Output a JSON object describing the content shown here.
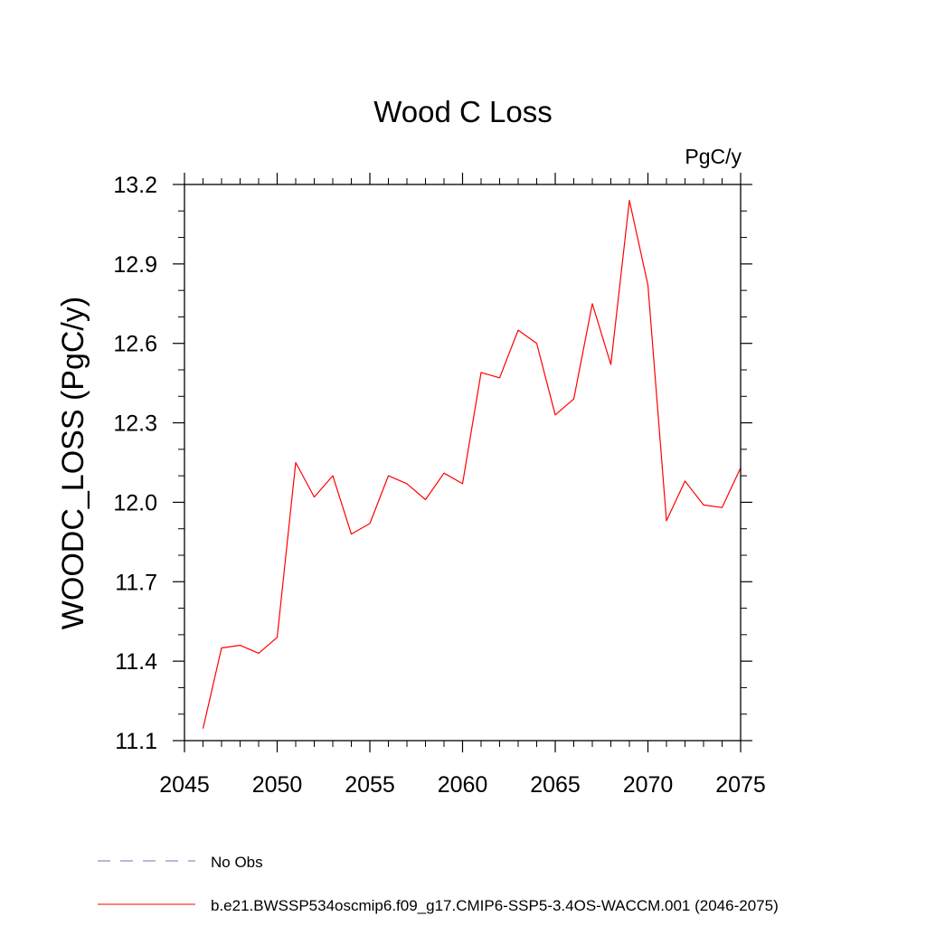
{
  "chart_data": {
    "type": "line",
    "title": "Wood C Loss",
    "units_label": "PgC/y",
    "ylabel": "WOODC_LOSS  (PgC/y)",
    "xlabel": "",
    "xlim": [
      2045,
      2075
    ],
    "ylim": [
      11.1,
      13.2
    ],
    "x_ticks": [
      2045,
      2050,
      2055,
      2060,
      2065,
      2070,
      2075
    ],
    "x_tick_labels": [
      "2045",
      "2050",
      "2055",
      "2060",
      "2065",
      "2070",
      "2075"
    ],
    "x_minor_step": 1,
    "y_ticks": [
      11.1,
      11.4,
      11.7,
      12.0,
      12.3,
      12.6,
      12.9,
      13.2
    ],
    "y_tick_labels": [
      "11.1",
      "11.4",
      "11.7",
      "12.0",
      "12.3",
      "12.6",
      "12.9",
      "13.2"
    ],
    "y_minor_step": 0.1,
    "grid": false,
    "legend_position": "bottom-left",
    "series": [
      {
        "name": "b.e21.BWSSP534oscmip6.f09_g17.CMIP6-SSP5-3.4OS-WACCM.001 (2046-2075)",
        "color": "#ff0000",
        "dash": "solid",
        "x": [
          2046,
          2047,
          2048,
          2049,
          2050,
          2051,
          2052,
          2053,
          2054,
          2055,
          2056,
          2057,
          2058,
          2059,
          2060,
          2061,
          2062,
          2063,
          2064,
          2065,
          2066,
          2067,
          2068,
          2069,
          2070,
          2071,
          2072,
          2073,
          2074,
          2075
        ],
        "values": [
          11.145,
          11.45,
          11.46,
          11.43,
          11.49,
          12.15,
          12.02,
          12.1,
          11.88,
          11.92,
          12.1,
          12.07,
          12.01,
          12.11,
          12.07,
          12.49,
          12.47,
          12.65,
          12.6,
          12.33,
          12.39,
          12.75,
          12.52,
          13.14,
          12.82,
          11.93,
          12.08,
          11.99,
          11.98,
          12.13
        ]
      }
    ],
    "legend": [
      {
        "label": "No Obs",
        "color": "#7b6fbf",
        "dash": "dashed"
      },
      {
        "label": "b.e21.BWSSP534oscmip6.f09_g17.CMIP6-SSP5-3.4OS-WACCM.001 (2046-2075)",
        "color": "#ff0000",
        "dash": "solid"
      }
    ]
  }
}
